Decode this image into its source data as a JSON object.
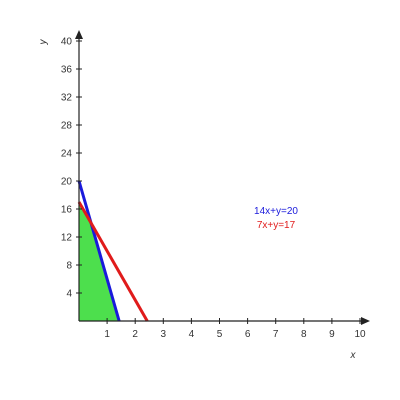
{
  "chart_data": {
    "type": "line",
    "title": "",
    "xlabel": "x",
    "ylabel": "y",
    "xlim": [
      0,
      10
    ],
    "ylim": [
      0,
      40
    ],
    "x_ticks": [
      1,
      2,
      3,
      4,
      5,
      6,
      7,
      8,
      9,
      10
    ],
    "y_ticks": [
      4,
      8,
      12,
      16,
      20,
      24,
      28,
      32,
      36,
      40
    ],
    "grid": false,
    "legend_position": "right",
    "series": [
      {
        "name": "14x+y=20",
        "color": "#1a1adb",
        "x": [
          0,
          1.4286
        ],
        "y": [
          20,
          0
        ]
      },
      {
        "name": "7x+y=17",
        "color": "#e01b1b",
        "x": [
          0,
          2.4286
        ],
        "y": [
          17,
          0
        ]
      }
    ],
    "feasible_region": {
      "color": "#4ddf4d",
      "vertices": [
        [
          0,
          0
        ],
        [
          0,
          17
        ],
        [
          0.4286,
          14
        ],
        [
          1.4286,
          0
        ]
      ]
    }
  }
}
